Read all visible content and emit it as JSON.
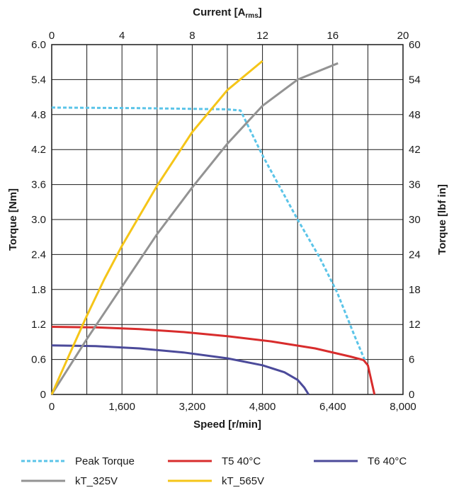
{
  "chart_data": {
    "type": "line",
    "title": "",
    "xlabel": "Speed [r/min]",
    "ylabel": "Torque [Nm]",
    "x2label_main": "Current [A",
    "x2label_sub": "rms",
    "x2label_end": "]",
    "y2label": "Torque [lbf in]",
    "xlim": [
      0,
      8000
    ],
    "ylim": [
      0,
      6.0
    ],
    "x2lim": [
      0,
      20
    ],
    "y2lim": [
      0,
      60
    ],
    "xticks": [
      0,
      800,
      1600,
      2400,
      3200,
      4000,
      4800,
      5600,
      6400,
      7200,
      8000
    ],
    "xtick_labels": [
      "0",
      "",
      "1,600",
      "",
      "3,200",
      "",
      "4,800",
      "",
      "6,400",
      "",
      "8,000"
    ],
    "yticks": [
      0,
      0.6,
      1.2,
      1.8,
      2.4,
      3.0,
      3.6,
      4.2,
      4.8,
      5.4,
      6.0
    ],
    "ytick_labels": [
      "0",
      "0.6",
      "1.2",
      "1.8",
      "2.4",
      "3.0",
      "3.6",
      "4.2",
      "4.8",
      "5.4",
      "6.0"
    ],
    "x2tick_labels": [
      "0",
      "",
      "4",
      "",
      "8",
      "",
      "12",
      "",
      "16",
      "",
      "20"
    ],
    "y2tick_labels": [
      "0",
      "6",
      "12",
      "18",
      "24",
      "30",
      "36",
      "42",
      "48",
      "54",
      "60"
    ],
    "grid": true,
    "legend_position": "bottom",
    "series": [
      {
        "name": "Peak Torque",
        "axis": "speed",
        "color": "#5bc4e8",
        "dash": true,
        "points": [
          [
            0,
            4.92
          ],
          [
            2000,
            4.91
          ],
          [
            4000,
            4.89
          ],
          [
            4300,
            4.87
          ],
          [
            4800,
            4.1
          ],
          [
            5600,
            3.0
          ],
          [
            6100,
            2.35
          ],
          [
            6500,
            1.75
          ],
          [
            6900,
            1.0
          ],
          [
            7150,
            0.55
          ]
        ]
      },
      {
        "name": "T5 40°C",
        "axis": "speed",
        "color": "#d82c2c",
        "dash": false,
        "points": [
          [
            0,
            1.16
          ],
          [
            1000,
            1.15
          ],
          [
            2000,
            1.12
          ],
          [
            3000,
            1.07
          ],
          [
            4000,
            1.0
          ],
          [
            5000,
            0.91
          ],
          [
            6000,
            0.79
          ],
          [
            6800,
            0.65
          ],
          [
            7100,
            0.59
          ],
          [
            7200,
            0.5
          ],
          [
            7350,
            0.0
          ]
        ]
      },
      {
        "name": "T6 40°C",
        "axis": "speed",
        "color": "#4b4a9a",
        "dash": false,
        "points": [
          [
            0,
            0.84
          ],
          [
            1000,
            0.83
          ],
          [
            2000,
            0.79
          ],
          [
            3000,
            0.72
          ],
          [
            4000,
            0.62
          ],
          [
            4800,
            0.5
          ],
          [
            5300,
            0.38
          ],
          [
            5600,
            0.25
          ],
          [
            5750,
            0.12
          ],
          [
            5850,
            0.0
          ]
        ]
      },
      {
        "name": "kT_325V",
        "axis": "current",
        "color": "#939393",
        "dash": false,
        "points": [
          [
            0,
            0.0
          ],
          [
            2,
            0.95
          ],
          [
            4,
            1.85
          ],
          [
            6,
            2.75
          ],
          [
            8,
            3.55
          ],
          [
            10,
            4.3
          ],
          [
            12,
            4.95
          ],
          [
            14,
            5.4
          ],
          [
            16.3,
            5.68
          ]
        ]
      },
      {
        "name": "kT_565V",
        "axis": "current",
        "color": "#f5c518",
        "dash": false,
        "points": [
          [
            0,
            0.0
          ],
          [
            1,
            0.68
          ],
          [
            2,
            1.35
          ],
          [
            3,
            1.98
          ],
          [
            4,
            2.55
          ],
          [
            6,
            3.58
          ],
          [
            8,
            4.5
          ],
          [
            10,
            5.22
          ],
          [
            12,
            5.72
          ]
        ]
      }
    ]
  }
}
